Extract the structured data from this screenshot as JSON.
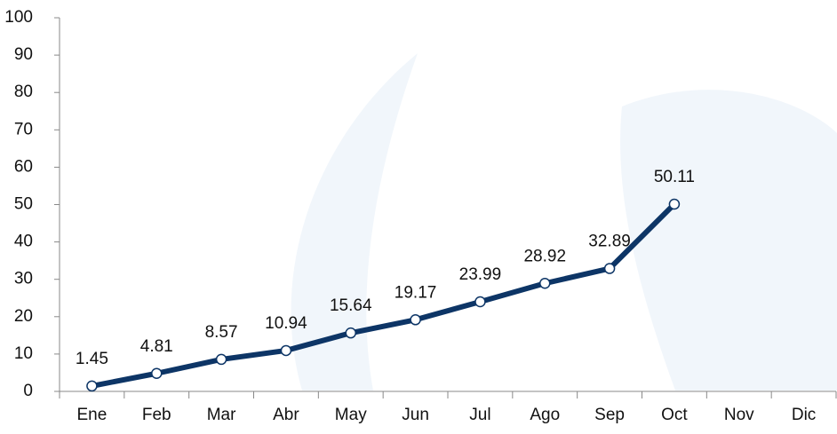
{
  "chart_data": {
    "type": "line",
    "categories": [
      "Ene",
      "Feb",
      "Mar",
      "Abr",
      "May",
      "Jun",
      "Jul",
      "Ago",
      "Sep",
      "Oct",
      "Nov",
      "Dic"
    ],
    "values": [
      1.45,
      4.81,
      8.57,
      10.94,
      15.64,
      19.17,
      23.99,
      28.92,
      32.89,
      50.11,
      null,
      null
    ],
    "color": "#0d3566",
    "ylim": [
      0,
      100
    ],
    "yticks": [
      0,
      10,
      20,
      30,
      40,
      50,
      60,
      70,
      80,
      90,
      100
    ],
    "grid": false
  }
}
